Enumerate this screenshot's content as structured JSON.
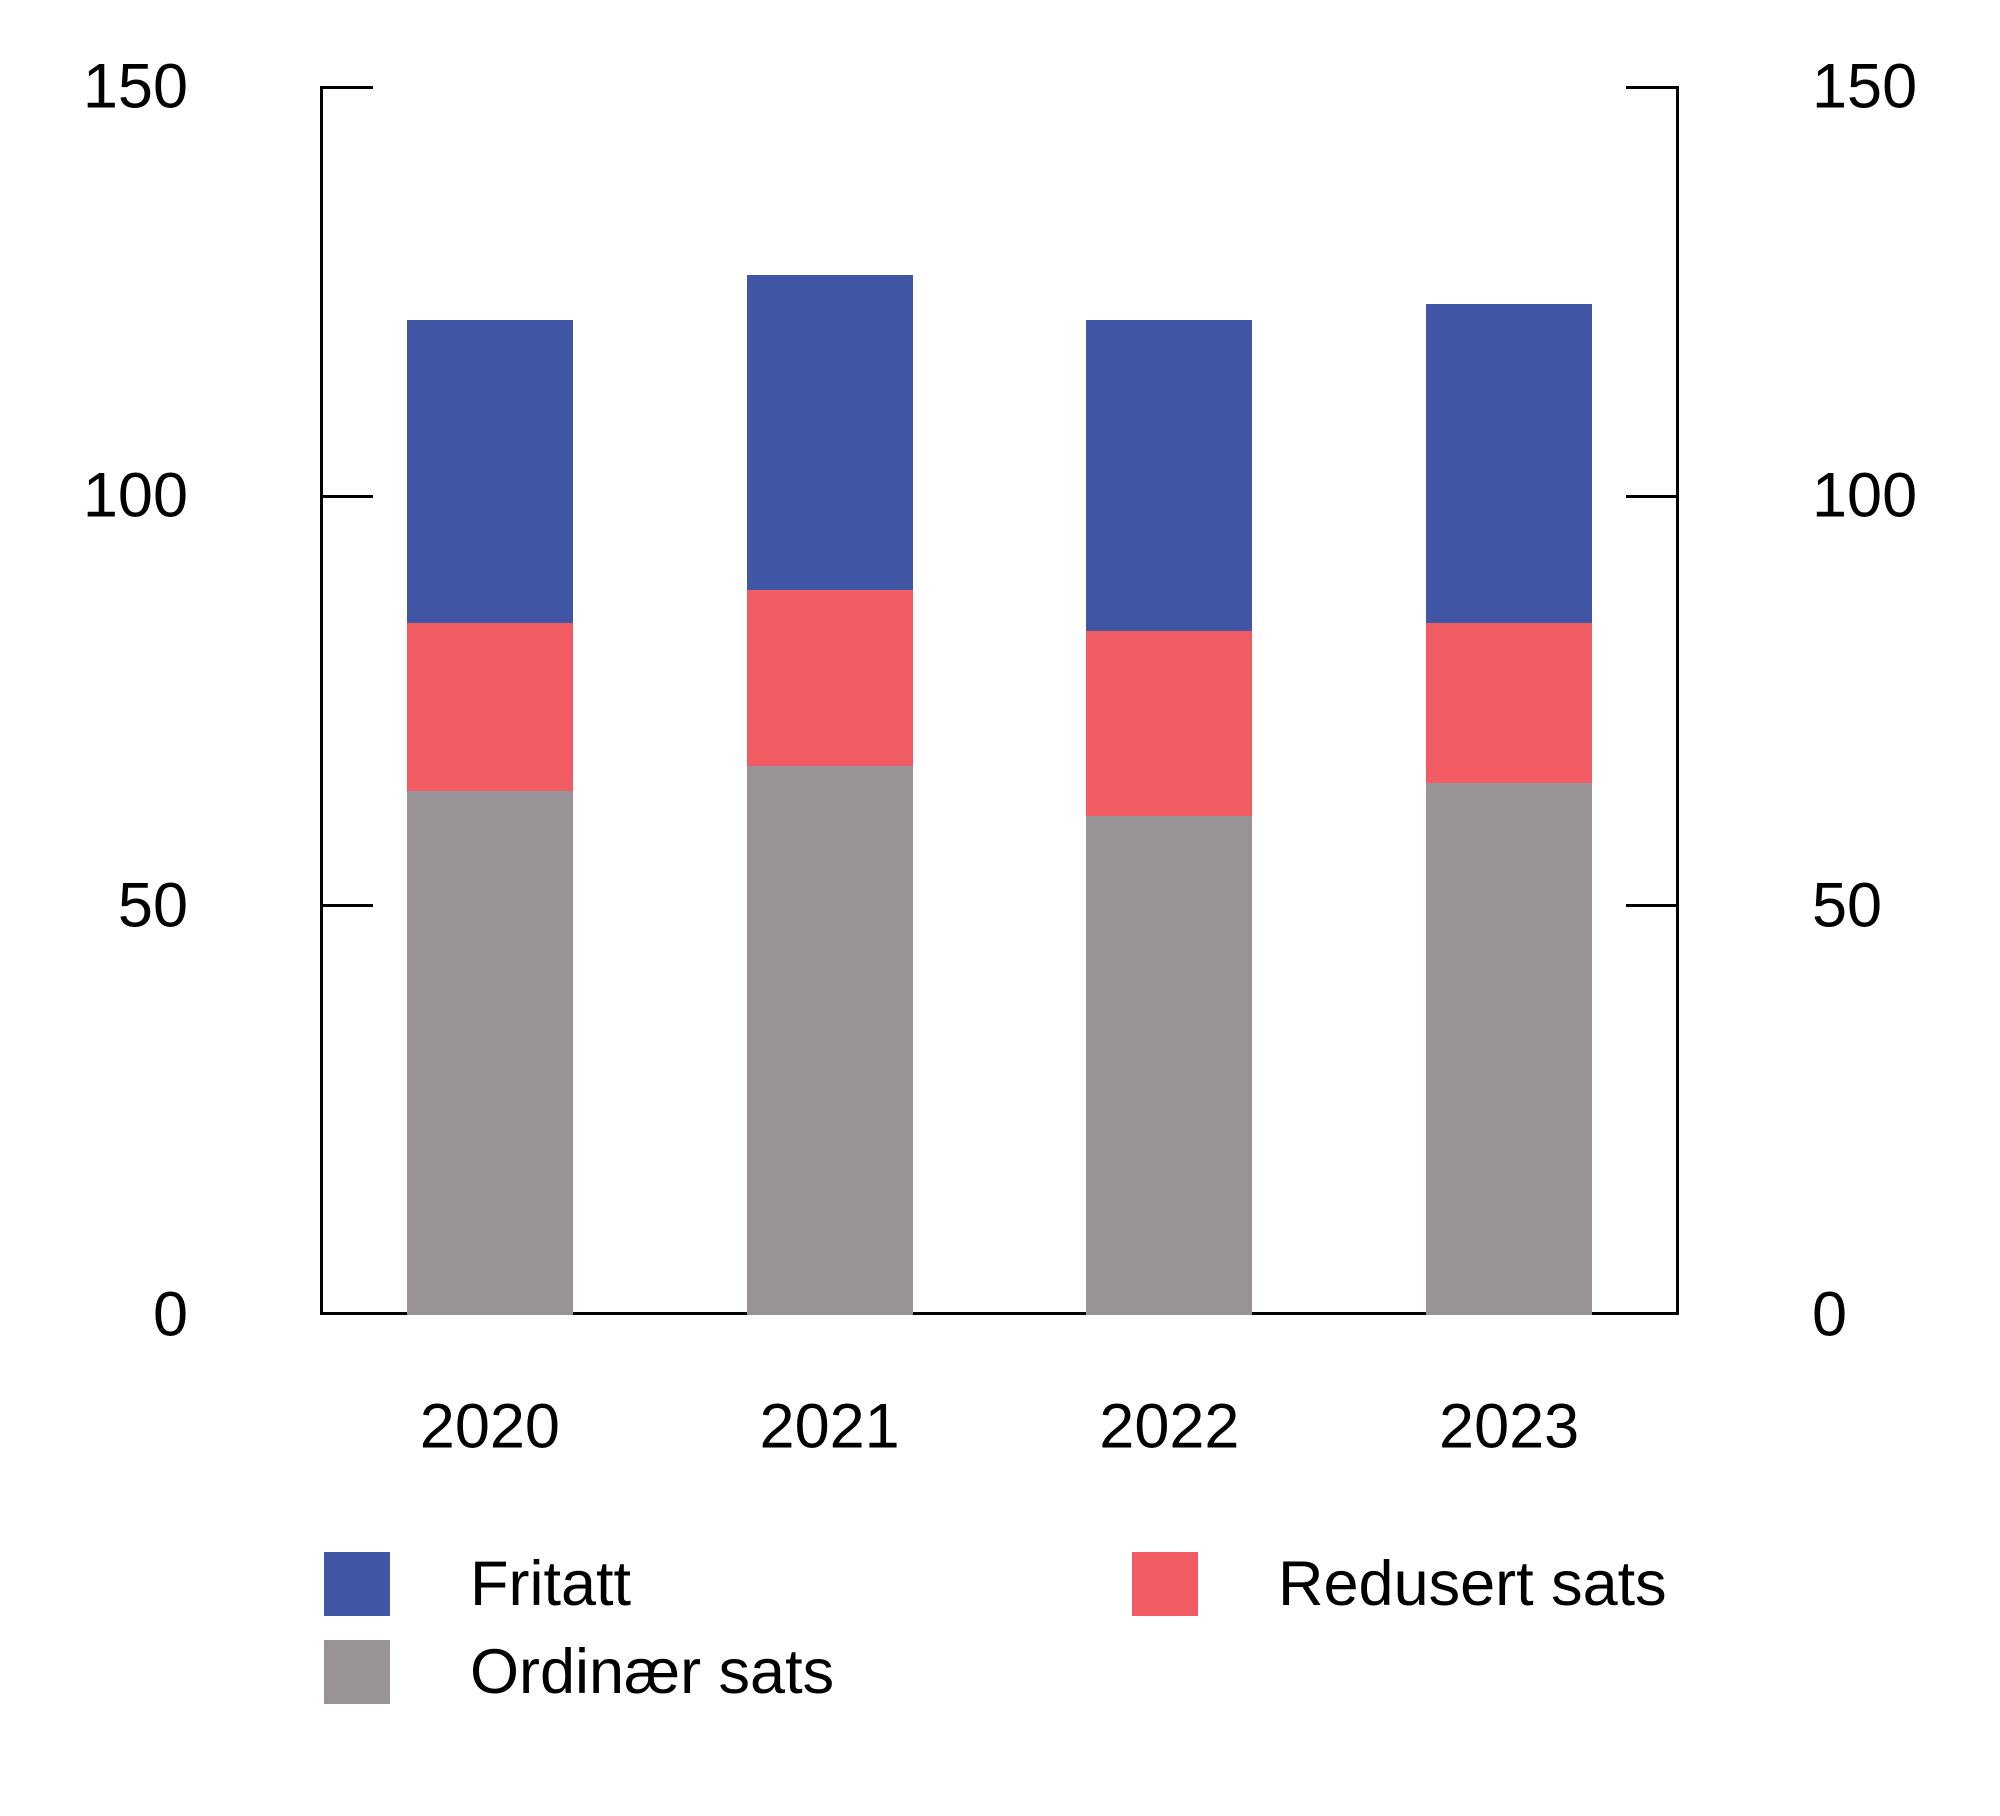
{
  "chart_data": {
    "type": "bar",
    "stacked": true,
    "title": "",
    "categories": [
      "2020",
      "2021",
      "2022",
      "2023"
    ],
    "series": [
      {
        "name": "Ordinær sats",
        "color": "#989397",
        "values": [
          64,
          67,
          61,
          65
        ]
      },
      {
        "name": "Redusert sats",
        "color": "#F15C63",
        "values": [
          20.5,
          21.5,
          22.5,
          19.5
        ]
      },
      {
        "name": "Fritatt",
        "color": "#4156A5",
        "values": [
          37,
          38.5,
          38,
          39
        ]
      }
    ],
    "totals": [
      121.5,
      127,
      121.5,
      123.5
    ],
    "xlabel": "",
    "ylabel": "",
    "ylim": [
      0,
      150
    ],
    "yticks": [
      0,
      50,
      100,
      150
    ],
    "ytick_labels": [
      "0",
      "50",
      "100",
      "150"
    ],
    "y_axis_sides": [
      "left",
      "right"
    ],
    "grid": false,
    "axis_color": "#000000",
    "background_color": "#FFFFFF",
    "legend": {
      "position": "bottom",
      "entries": [
        {
          "label": "Fritatt",
          "color": "#4156A5"
        },
        {
          "label": "Redusert sats",
          "color": "#F15C63"
        },
        {
          "label": "Ordinær sats",
          "color": "#989397"
        }
      ]
    }
  }
}
